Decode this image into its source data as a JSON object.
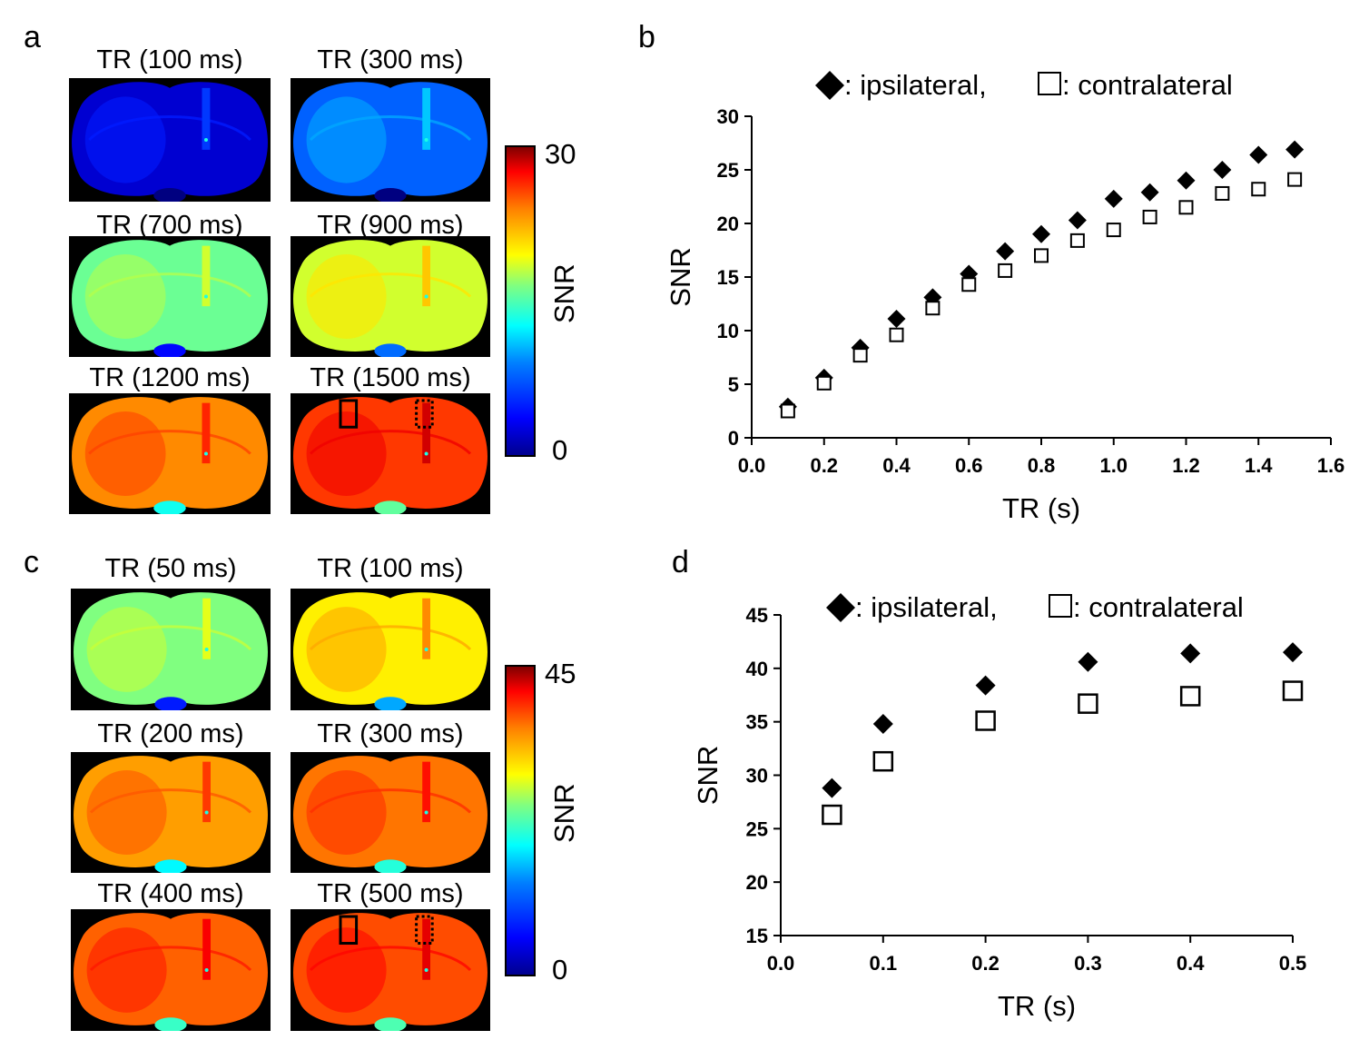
{
  "panels": {
    "a": {
      "letter": "a",
      "colorbar": {
        "max": "30",
        "min": "0",
        "label": "SNR"
      },
      "images": [
        {
          "title": "TR (100 ms)",
          "level": 0.08
        },
        {
          "title": "TR (300 ms)",
          "level": 0.22
        },
        {
          "title": "TR (700 ms)",
          "level": 0.48
        },
        {
          "title": "TR (900 ms)",
          "level": 0.58
        },
        {
          "title": "TR (1200 ms)",
          "level": 0.74
        },
        {
          "title": "TR (1500 ms)",
          "level": 0.82
        }
      ]
    },
    "b": {
      "letter": "b"
    },
    "c": {
      "letter": "c",
      "colorbar": {
        "max": "45",
        "min": "0",
        "label": "SNR"
      },
      "images": [
        {
          "title": "TR (50 ms)",
          "level": 0.5
        },
        {
          "title": "TR (100 ms)",
          "level": 0.64
        },
        {
          "title": "TR (200 ms)",
          "level": 0.72
        },
        {
          "title": "TR (300 ms)",
          "level": 0.76
        },
        {
          "title": "TR (400 ms)",
          "level": 0.78
        },
        {
          "title": "TR (500 ms)",
          "level": 0.8
        }
      ]
    },
    "d": {
      "letter": "d"
    }
  },
  "chart_data": [
    {
      "panel": "b",
      "type": "scatter",
      "title": ": ipsilateral, ",
      "title_part2": ": contralateral",
      "xlabel": "TR (s)",
      "ylabel": "SNR",
      "xlim": [
        0.0,
        1.6
      ],
      "ylim": [
        0,
        30
      ],
      "xticks": [
        "0.0",
        "0.2",
        "0.4",
        "0.6",
        "0.8",
        "1.0",
        "1.2",
        "1.4",
        "1.6"
      ],
      "yticks": [
        "0",
        "5",
        "10",
        "15",
        "20",
        "25",
        "30"
      ],
      "legend": "top",
      "series": [
        {
          "name": "ipsilateral",
          "marker": "filled-diamond",
          "x": [
            0.1,
            0.2,
            0.3,
            0.4,
            0.5,
            0.6,
            0.7,
            0.8,
            0.9,
            1.0,
            1.1,
            1.2,
            1.3,
            1.4,
            1.5
          ],
          "y": [
            2.9,
            5.6,
            8.4,
            11.1,
            13.1,
            15.3,
            17.4,
            19.0,
            20.3,
            22.3,
            22.9,
            24.0,
            25.0,
            26.4,
            26.9
          ]
        },
        {
          "name": "contralateral",
          "marker": "open-square",
          "x": [
            0.1,
            0.2,
            0.3,
            0.4,
            0.5,
            0.6,
            0.7,
            0.8,
            0.9,
            1.0,
            1.1,
            1.2,
            1.3,
            1.4,
            1.5
          ],
          "y": [
            2.5,
            5.1,
            7.7,
            9.6,
            12.1,
            14.3,
            15.6,
            17.0,
            18.4,
            19.4,
            20.6,
            21.5,
            22.8,
            23.2,
            24.1
          ]
        }
      ]
    },
    {
      "panel": "d",
      "type": "scatter",
      "title": ": ipsilateral, ",
      "title_part2": ": contralateral",
      "xlabel": "TR (s)",
      "ylabel": "SNR",
      "xlim": [
        0.0,
        0.5
      ],
      "ylim": [
        15,
        45
      ],
      "xticks": [
        "0.0",
        "0.1",
        "0.2",
        "0.3",
        "0.4",
        "0.5"
      ],
      "yticks": [
        "15",
        "20",
        "25",
        "30",
        "35",
        "40",
        "45"
      ],
      "legend": "top",
      "series": [
        {
          "name": "ipsilateral",
          "marker": "filled-diamond",
          "x": [
            0.05,
            0.1,
            0.2,
            0.3,
            0.4,
            0.5
          ],
          "y": [
            28.8,
            34.8,
            38.4,
            40.6,
            41.4,
            41.5
          ]
        },
        {
          "name": "contralateral",
          "marker": "open-square",
          "x": [
            0.05,
            0.1,
            0.2,
            0.3,
            0.4,
            0.5
          ],
          "y": [
            26.3,
            31.3,
            35.1,
            36.7,
            37.4,
            37.9
          ]
        }
      ]
    }
  ]
}
